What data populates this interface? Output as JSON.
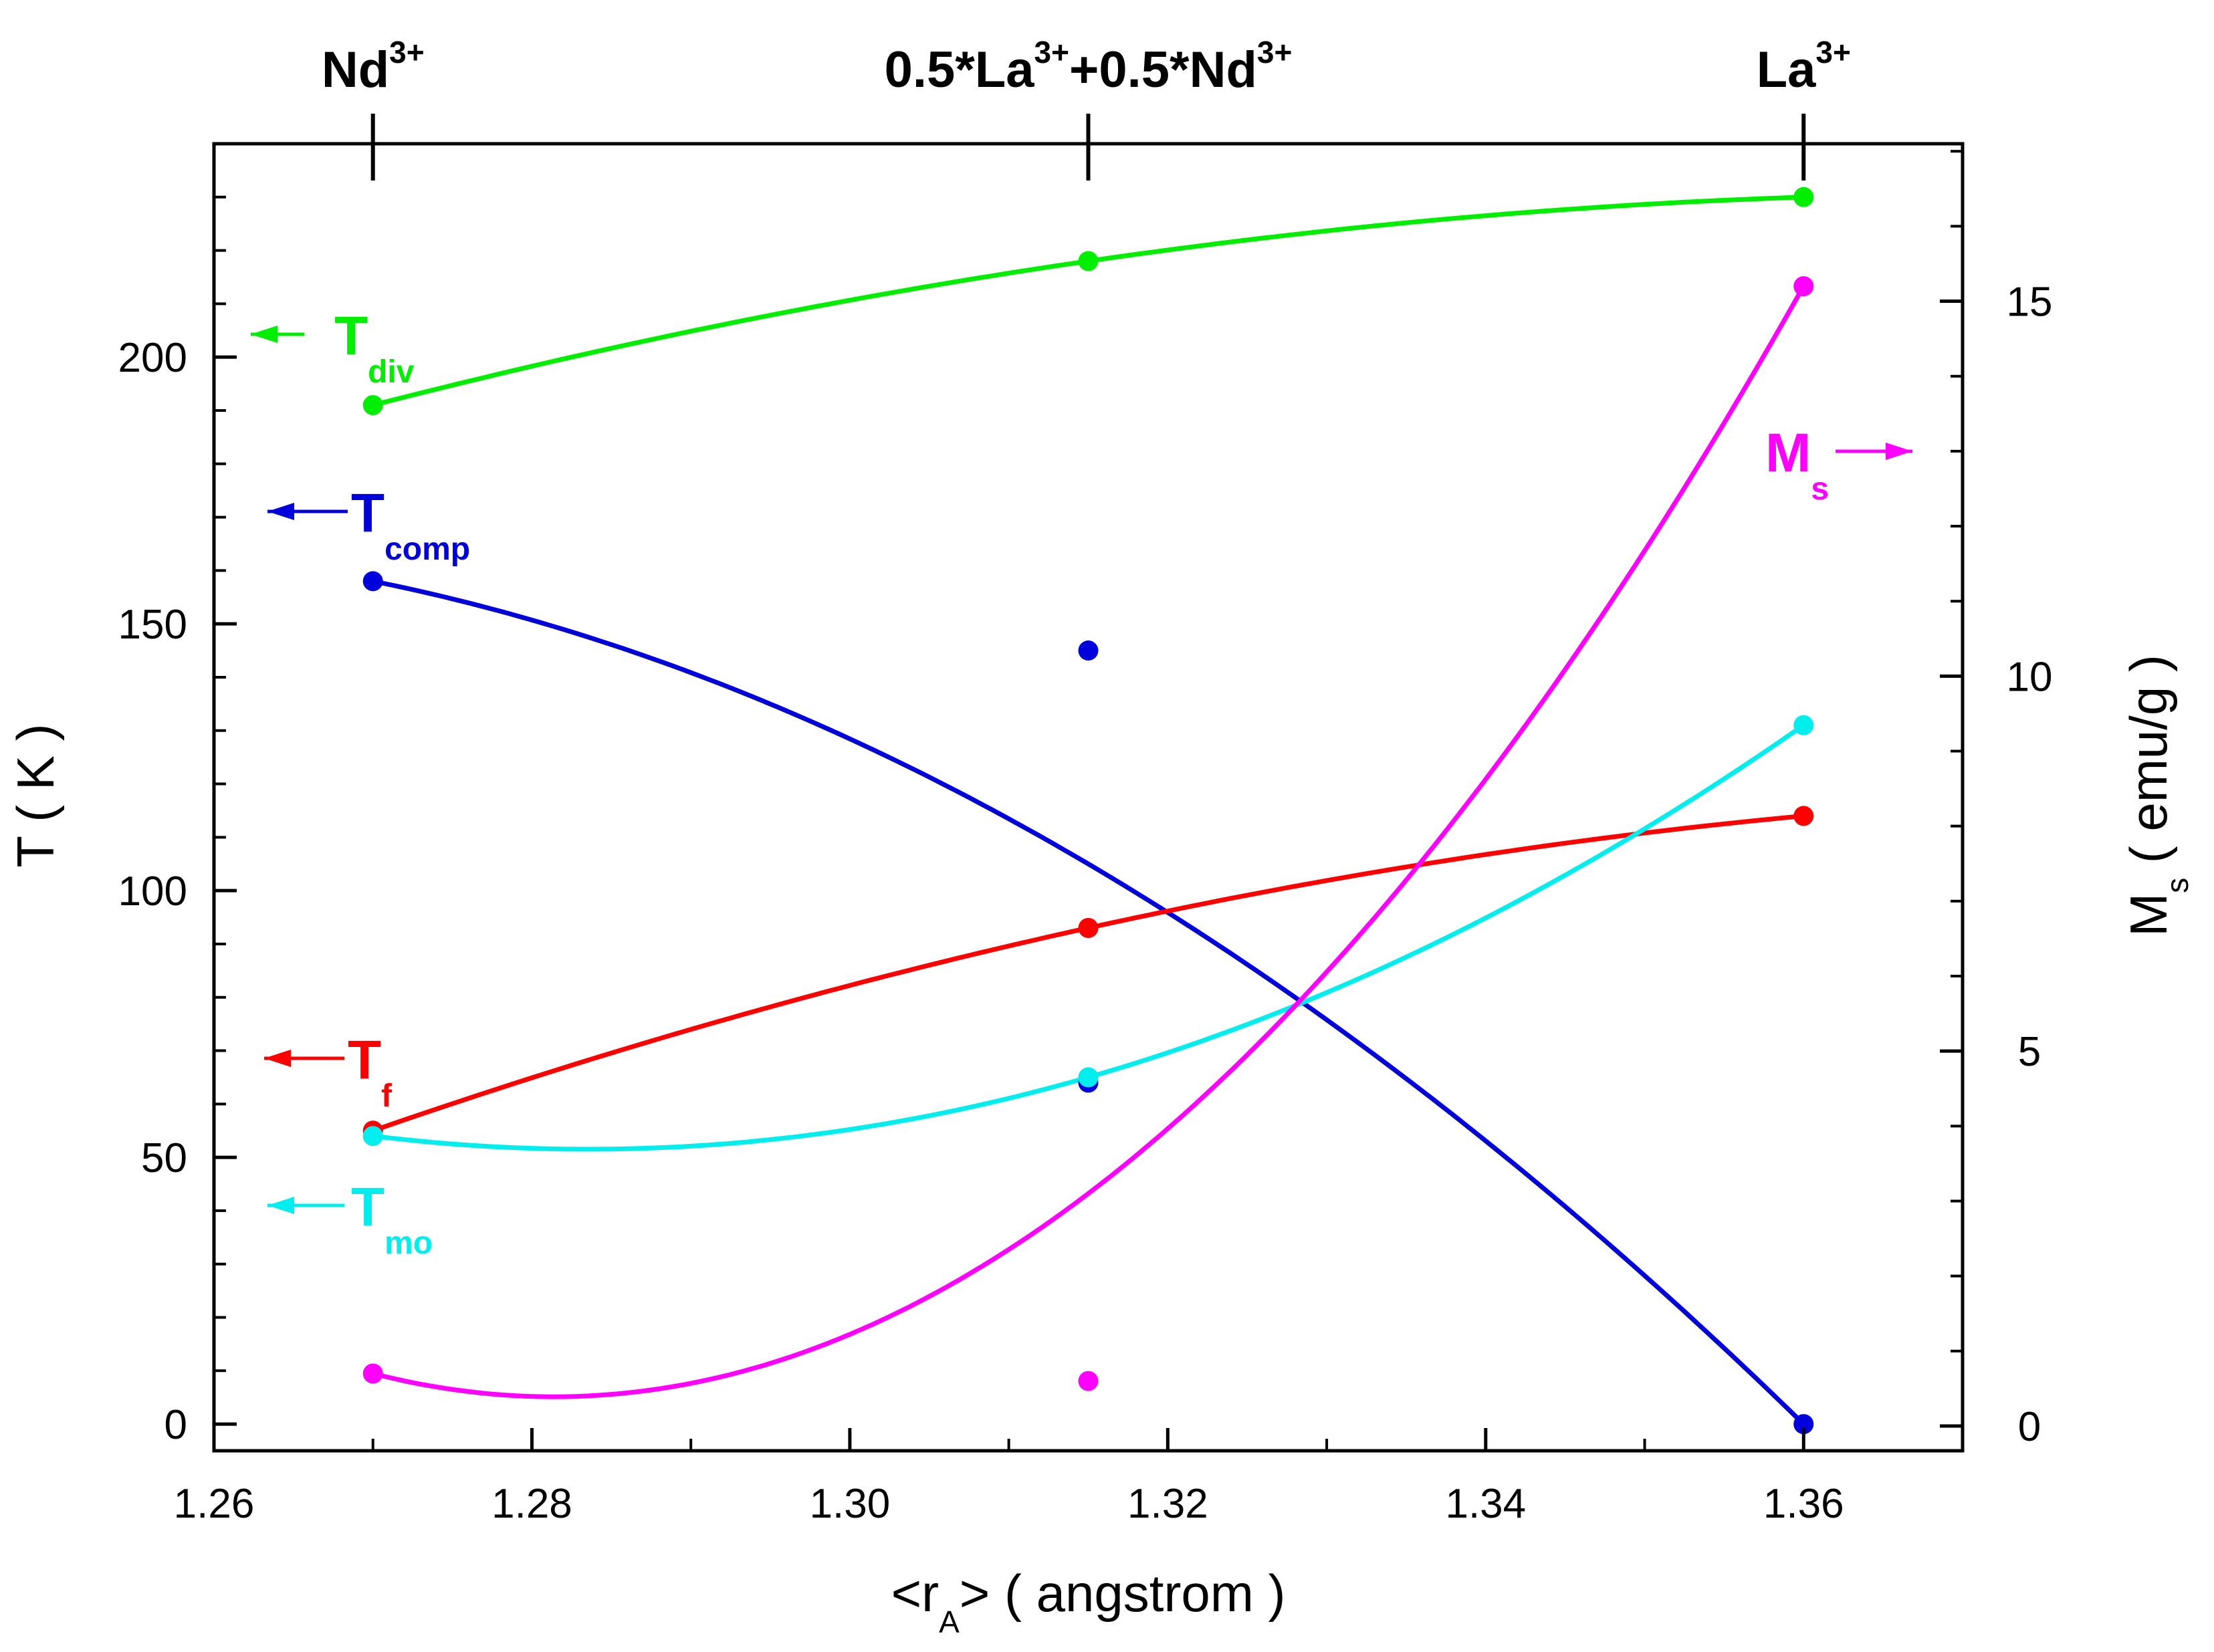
{
  "chart_data": {
    "type": "line",
    "title": "",
    "x": [
      1.27,
      1.315,
      1.36
    ],
    "xlabel": {
      "main": "<r",
      "sub": "A",
      "tail": "> ( angstrom )"
    },
    "ylabel": "T ( K )",
    "y2label": {
      "main": "M",
      "sub": "s",
      "tail": " ( emu/g )"
    },
    "xlim": [
      1.26,
      1.37
    ],
    "ylim": [
      -5,
      240
    ],
    "y2lim": [
      -0.33,
      17.1
    ],
    "xticks": [
      1.26,
      1.28,
      1.3,
      1.32,
      1.34,
      1.36
    ],
    "xtick_labels": [
      "1.26",
      "1.28",
      "1.30",
      "1.32",
      "1.34",
      "1.36"
    ],
    "yticks": [
      0,
      50,
      100,
      150,
      200
    ],
    "ytick_labels": [
      "0",
      "50",
      "100",
      "150",
      "200"
    ],
    "y2ticks": [
      0,
      5,
      10,
      15
    ],
    "y2tick_labels": [
      "0",
      "5",
      "10",
      "15"
    ],
    "top_axis": [
      {
        "x": 1.27,
        "main": "Nd",
        "sup": "3+"
      },
      {
        "x": 1.315,
        "main": "0.5*La",
        "sup": "3+",
        "main2": "+0.5*Nd",
        "sup2": "3+"
      },
      {
        "x": 1.36,
        "main": "La",
        "sup": "3+"
      }
    ],
    "series": [
      {
        "name": "T_div",
        "axis": "left",
        "color": "#00ee00",
        "values": [
          191,
          218,
          230
        ],
        "fit": [
          191,
          218,
          230
        ]
      },
      {
        "name": "T_comp",
        "axis": "left",
        "color": "#0000dd",
        "values": [
          158,
          145,
          0
        ],
        "extra_points": [
          [
            1.315,
            64
          ]
        ],
        "fit": [
          158,
          105,
          0
        ]
      },
      {
        "name": "T_f",
        "axis": "left",
        "color": "#ff0000",
        "values": [
          55,
          93,
          114
        ],
        "fit": [
          55,
          93,
          114
        ]
      },
      {
        "name": "T_mo",
        "axis": "left",
        "color": "#00eeee",
        "values": [
          54,
          65,
          131
        ],
        "fit": [
          54,
          65,
          131
        ]
      },
      {
        "name": "M_s",
        "axis": "right",
        "color": "#ff00ff",
        "values": [
          0.7,
          0.6,
          15.2
        ],
        "fit": [
          0.7,
          3.1,
          15.2
        ]
      }
    ],
    "annotations": [
      {
        "series": "T_div",
        "main": "T",
        "sub": "div",
        "arrow": "left",
        "color": "#00ee00"
      },
      {
        "series": "T_comp",
        "main": "T",
        "sub": "comp",
        "arrow": "left",
        "color": "#0000dd"
      },
      {
        "series": "T_f",
        "main": "T",
        "sub": "f",
        "arrow": "left",
        "color": "#ff0000"
      },
      {
        "series": "T_mo",
        "main": "T",
        "sub": "mo",
        "arrow": "left",
        "color": "#00eeee"
      },
      {
        "series": "M_s",
        "main": "M",
        "sub": "s",
        "arrow": "right",
        "color": "#ff00ff"
      }
    ],
    "grid": false,
    "legend": "none"
  }
}
